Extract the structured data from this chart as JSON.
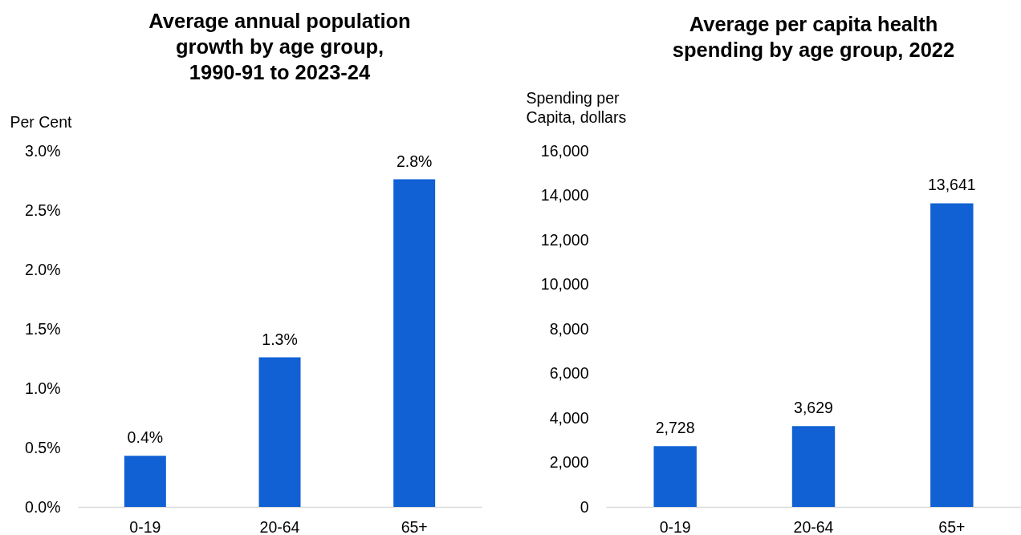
{
  "chart_data": [
    {
      "type": "bar",
      "title": "Average annual population\ngrowth by age group,\n1990-91 to 2023-24",
      "ylabel": "Per Cent",
      "categories": [
        "0-19",
        "20-64",
        "65+"
      ],
      "values": [
        0.43,
        1.26,
        2.76
      ],
      "value_labels": [
        "0.4%",
        "1.3%",
        "2.8%"
      ],
      "color": "#1160d4",
      "ylim": [
        0,
        3
      ],
      "yticks": [
        {
          "value": 0,
          "label": "0.0%"
        },
        {
          "value": 0.5,
          "label": "0.5%"
        },
        {
          "value": 1,
          "label": "1.0%"
        },
        {
          "value": 1.5,
          "label": "1.5%"
        },
        {
          "value": 2,
          "label": "2.0%"
        },
        {
          "value": 2.5,
          "label": "2.5%"
        },
        {
          "value": 3,
          "label": "3.0%"
        }
      ],
      "grid": false
    },
    {
      "type": "bar",
      "title": "Average per capita health\nspending by age group, 2022",
      "ylabel": "Spending per\nCapita, dollars",
      "categories": [
        "0-19",
        "20-64",
        "65+"
      ],
      "values": [
        2728,
        3629,
        13641
      ],
      "value_labels": [
        "2,728",
        "3,629",
        "13,641"
      ],
      "color": "#1160d4",
      "ylim": [
        0,
        16000
      ],
      "yticks": [
        0,
        {
          "value": 2000,
          "label": "2,000"
        },
        {
          "value": 4000,
          "label": "4,000"
        },
        {
          "value": 6000,
          "label": "6,000"
        },
        {
          "value": 8000,
          "label": "8,000"
        },
        {
          "value": 10000,
          "label": "10,000"
        },
        {
          "value": 12000,
          "label": "12,000"
        },
        {
          "value": 14000,
          "label": "14,000"
        },
        {
          "value": 16000,
          "label": "16,000"
        }
      ],
      "grid": false
    }
  ]
}
